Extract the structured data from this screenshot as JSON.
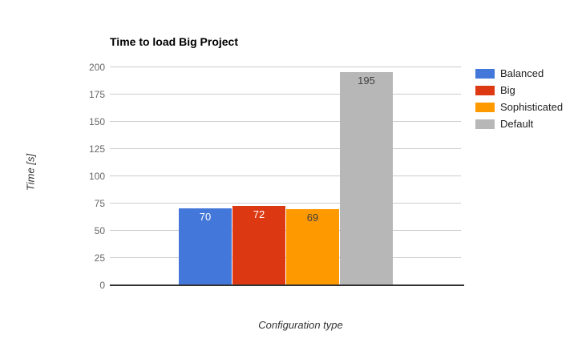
{
  "chart_data": {
    "type": "bar",
    "title": "Time to load Big Project",
    "xlabel": "Configuration type",
    "ylabel": "Time [s]",
    "categories": [
      "Balanced",
      "Big",
      "Sophisticated",
      "Default"
    ],
    "values": [
      70,
      72,
      69,
      195
    ],
    "bar_colors": [
      "#4377d9",
      "#dc3912",
      "#ff9900",
      "#b7b7b7"
    ],
    "value_label_colors": [
      "#ffffff",
      "#ffffff",
      "#404040",
      "#404040"
    ],
    "ylim": [
      0,
      200
    ],
    "yticks": [
      0,
      25,
      50,
      75,
      100,
      125,
      150,
      175,
      200
    ],
    "grid": true,
    "legend_position": "right",
    "legend": [
      {
        "label": "Balanced",
        "color": "#4377d9"
      },
      {
        "label": "Big",
        "color": "#dc3912"
      },
      {
        "label": "Sophisticated",
        "color": "#ff9900"
      },
      {
        "label": "Default",
        "color": "#b7b7b7"
      }
    ]
  }
}
